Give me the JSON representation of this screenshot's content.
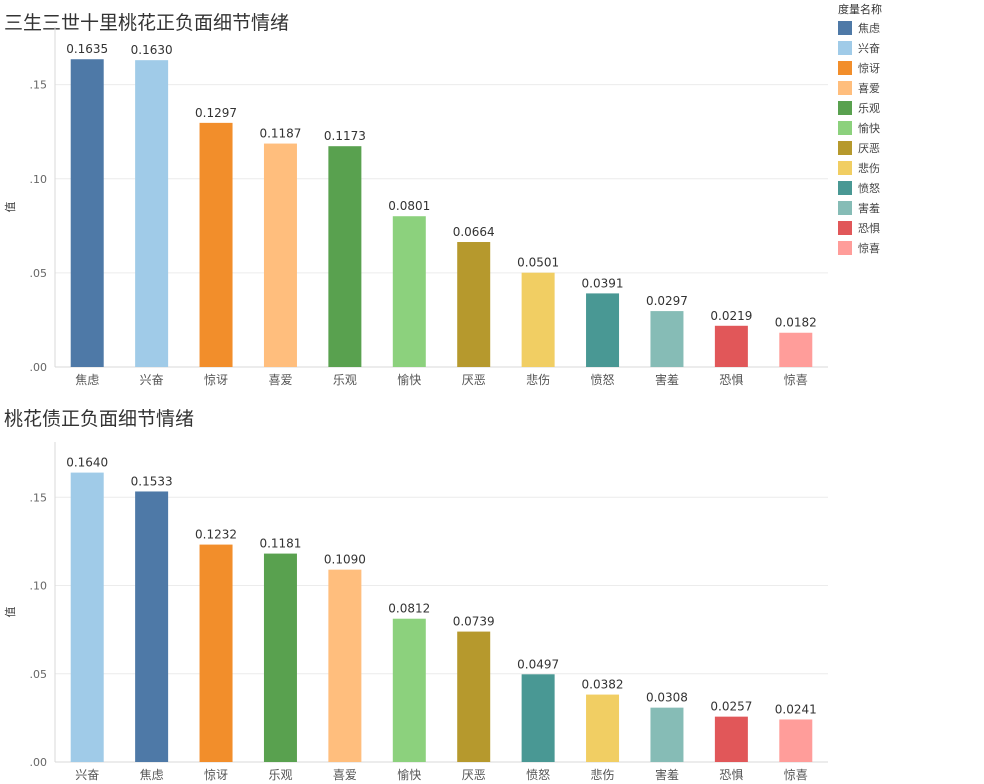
{
  "chart_data": [
    {
      "type": "bar",
      "title": "三生三世十里桃花正负面细节情绪",
      "ylabel": "值",
      "ylim": [
        0,
        0.17
      ],
      "yticks": [
        0,
        0.05,
        0.1,
        0.15
      ],
      "ytick_labels": [
        ".00",
        ".05",
        ".10",
        ".15"
      ],
      "categories": [
        "焦虑",
        "兴奋",
        "惊讶",
        "喜爱",
        "乐观",
        "愉快",
        "厌恶",
        "悲伤",
        "愤怒",
        "害羞",
        "恐惧",
        "惊喜"
      ],
      "values": [
        0.1635,
        0.163,
        0.1297,
        0.1187,
        0.1173,
        0.0801,
        0.0664,
        0.0501,
        0.0391,
        0.0297,
        0.0219,
        0.0182
      ],
      "value_labels": [
        "0.1635",
        "0.1630",
        "0.1297",
        "0.1187",
        "0.1173",
        "0.0801",
        "0.0664",
        "0.0501",
        "0.0391",
        "0.0297",
        "0.0219",
        "0.0182"
      ],
      "grid": true
    },
    {
      "type": "bar",
      "title": "桃花债正负面细节情绪",
      "ylabel": "值",
      "ylim": [
        0,
        0.17
      ],
      "yticks": [
        0,
        0.05,
        0.1,
        0.15
      ],
      "ytick_labels": [
        ".00",
        ".05",
        ".10",
        ".15"
      ],
      "categories": [
        "兴奋",
        "焦虑",
        "惊讶",
        "乐观",
        "喜爱",
        "愉快",
        "厌恶",
        "愤怒",
        "悲伤",
        "害羞",
        "恐惧",
        "惊喜"
      ],
      "values": [
        0.164,
        0.1533,
        0.1232,
        0.1181,
        0.109,
        0.0812,
        0.0739,
        0.0497,
        0.0382,
        0.0308,
        0.0257,
        0.0241
      ],
      "value_labels": [
        "0.1640",
        "0.1533",
        "0.1232",
        "0.1181",
        "0.1090",
        "0.0812",
        "0.0739",
        "0.0497",
        "0.0382",
        "0.0308",
        "0.0257",
        "0.0241"
      ],
      "grid": true
    }
  ],
  "legend": {
    "title": "度量名称",
    "placement": "right",
    "items": [
      {
        "label": "焦虑",
        "color": "#4e79a7"
      },
      {
        "label": "兴奋",
        "color": "#a0cbe8"
      },
      {
        "label": "惊讶",
        "color": "#f28e2b"
      },
      {
        "label": "喜爱",
        "color": "#ffbe7d"
      },
      {
        "label": "乐观",
        "color": "#59a14f"
      },
      {
        "label": "愉快",
        "color": "#8cd17d"
      },
      {
        "label": "厌恶",
        "color": "#b6992d"
      },
      {
        "label": "悲伤",
        "color": "#f1ce63"
      },
      {
        "label": "愤怒",
        "color": "#499894"
      },
      {
        "label": "害羞",
        "color": "#86bcb6"
      },
      {
        "label": "恐惧",
        "color": "#e15759"
      },
      {
        "label": "惊喜",
        "color": "#ff9d9a"
      }
    ]
  }
}
